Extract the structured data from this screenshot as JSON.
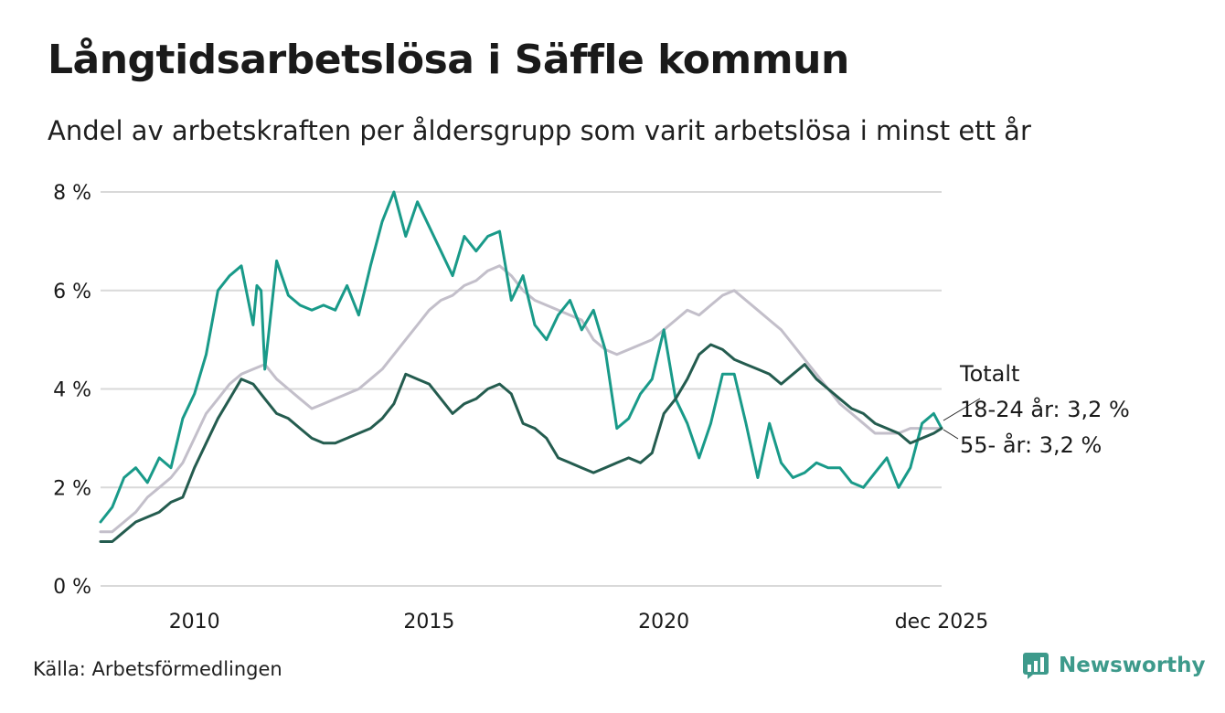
{
  "header": {
    "title": "Långtidsarbetslösa i Säffle kommun",
    "subtitle": "Andel av arbetskraften per åldersgrupp som varit arbetslösa i minst ett år"
  },
  "footer": {
    "source": "Källa: Arbetsförmedlingen",
    "brand": "Newsworthy"
  },
  "colors": {
    "totalt": "#c3bfca",
    "age_18_24": "#199a89",
    "age_55": "#245c4f",
    "grid": "#d9d9d9",
    "brand": "#3d9a8b"
  },
  "chart_data": {
    "type": "line",
    "title": "Långtidsarbetslösa i Säffle kommun",
    "xlabel": "",
    "ylabel": "",
    "ylim": [
      0,
      8
    ],
    "y_ticks": [
      0,
      2,
      4,
      6,
      8
    ],
    "y_tick_labels": [
      "0 %",
      "2 %",
      "4 %",
      "6 %",
      "8 %"
    ],
    "xlim": [
      2008.0,
      2025.917
    ],
    "x_ticks": [
      2010,
      2015,
      2020,
      2025.917
    ],
    "x_tick_labels": [
      "2010",
      "2015",
      "2020",
      "dec 2025"
    ],
    "grid": true,
    "end_labels": [
      "Totalt",
      "18-24 år: 3,2 %",
      "55- år: 3,2 %"
    ],
    "series": [
      {
        "name": "Totalt",
        "key": "totalt",
        "x": [
          2008.0,
          2008.25,
          2008.5,
          2008.75,
          2009.0,
          2009.25,
          2009.5,
          2009.75,
          2010.0,
          2010.25,
          2010.5,
          2010.75,
          2011.0,
          2011.25,
          2011.5,
          2011.75,
          2012.0,
          2012.25,
          2012.5,
          2012.75,
          2013.0,
          2013.25,
          2013.5,
          2013.75,
          2014.0,
          2014.25,
          2014.5,
          2014.75,
          2015.0,
          2015.25,
          2015.5,
          2015.75,
          2016.0,
          2016.25,
          2016.5,
          2016.75,
          2017.0,
          2017.25,
          2017.5,
          2017.75,
          2018.0,
          2018.25,
          2018.5,
          2018.75,
          2019.0,
          2019.25,
          2019.5,
          2019.75,
          2020.0,
          2020.25,
          2020.5,
          2020.75,
          2021.0,
          2021.25,
          2021.5,
          2021.75,
          2022.0,
          2022.25,
          2022.5,
          2022.75,
          2023.0,
          2023.25,
          2023.5,
          2023.75,
          2024.0,
          2024.25,
          2024.5,
          2024.75,
          2025.0,
          2025.25,
          2025.5,
          2025.75,
          2025.917
        ],
        "values": [
          1.1,
          1.1,
          1.3,
          1.5,
          1.8,
          2.0,
          2.2,
          2.5,
          3.0,
          3.5,
          3.8,
          4.1,
          4.3,
          4.4,
          4.5,
          4.2,
          4.0,
          3.8,
          3.6,
          3.7,
          3.8,
          3.9,
          4.0,
          4.2,
          4.4,
          4.7,
          5.0,
          5.3,
          5.6,
          5.8,
          5.9,
          6.1,
          6.2,
          6.4,
          6.5,
          6.3,
          6.0,
          5.8,
          5.7,
          5.6,
          5.5,
          5.4,
          5.0,
          4.8,
          4.7,
          4.8,
          4.9,
          5.0,
          5.2,
          5.4,
          5.6,
          5.5,
          5.7,
          5.9,
          6.0,
          5.8,
          5.6,
          5.4,
          5.2,
          4.9,
          4.6,
          4.3,
          4.0,
          3.7,
          3.5,
          3.3,
          3.1,
          3.1,
          3.1,
          3.2,
          3.2,
          3.2,
          3.2
        ]
      },
      {
        "name": "18-24 år",
        "key": "age_18_24",
        "x": [
          2008.0,
          2008.25,
          2008.5,
          2008.75,
          2009.0,
          2009.25,
          2009.5,
          2009.75,
          2010.0,
          2010.25,
          2010.5,
          2010.75,
          2011.0,
          2011.25,
          2011.33,
          2011.42,
          2011.5,
          2011.75,
          2012.0,
          2012.25,
          2012.5,
          2012.75,
          2013.0,
          2013.25,
          2013.5,
          2013.75,
          2014.0,
          2014.25,
          2014.5,
          2014.75,
          2015.0,
          2015.25,
          2015.5,
          2015.75,
          2016.0,
          2016.25,
          2016.5,
          2016.75,
          2017.0,
          2017.25,
          2017.5,
          2017.75,
          2018.0,
          2018.25,
          2018.5,
          2018.75,
          2019.0,
          2019.25,
          2019.5,
          2019.75,
          2020.0,
          2020.25,
          2020.5,
          2020.75,
          2021.0,
          2021.25,
          2021.5,
          2021.75,
          2022.0,
          2022.25,
          2022.5,
          2022.75,
          2023.0,
          2023.25,
          2023.5,
          2023.75,
          2024.0,
          2024.25,
          2024.5,
          2024.75,
          2025.0,
          2025.25,
          2025.5,
          2025.75,
          2025.917
        ],
        "values": [
          1.3,
          1.6,
          2.2,
          2.4,
          2.1,
          2.6,
          2.4,
          3.4,
          3.9,
          4.7,
          6.0,
          6.3,
          6.5,
          5.3,
          6.1,
          6.0,
          4.4,
          6.6,
          5.9,
          5.7,
          5.6,
          5.7,
          5.6,
          6.1,
          5.5,
          6.5,
          7.4,
          8.0,
          7.1,
          7.8,
          7.3,
          6.8,
          6.3,
          7.1,
          6.8,
          7.1,
          7.2,
          5.8,
          6.3,
          5.3,
          5.0,
          5.5,
          5.8,
          5.2,
          5.6,
          4.8,
          3.2,
          3.4,
          3.9,
          4.2,
          5.2,
          3.8,
          3.3,
          2.6,
          3.3,
          4.3,
          4.3,
          3.3,
          2.2,
          3.3,
          2.5,
          2.2,
          2.3,
          2.5,
          2.4,
          2.4,
          2.1,
          2.0,
          2.3,
          2.6,
          2.0,
          2.4,
          3.3,
          3.5,
          3.2
        ]
      },
      {
        "name": "55- år",
        "key": "age_55",
        "x": [
          2008.0,
          2008.25,
          2008.5,
          2008.75,
          2009.0,
          2009.25,
          2009.5,
          2009.75,
          2010.0,
          2010.25,
          2010.5,
          2010.75,
          2011.0,
          2011.25,
          2011.5,
          2011.75,
          2012.0,
          2012.25,
          2012.5,
          2012.75,
          2013.0,
          2013.25,
          2013.5,
          2013.75,
          2014.0,
          2014.25,
          2014.5,
          2014.75,
          2015.0,
          2015.25,
          2015.5,
          2015.75,
          2016.0,
          2016.25,
          2016.5,
          2016.75,
          2017.0,
          2017.25,
          2017.5,
          2017.75,
          2018.0,
          2018.25,
          2018.5,
          2018.75,
          2019.0,
          2019.25,
          2019.5,
          2019.75,
          2020.0,
          2020.25,
          2020.5,
          2020.75,
          2021.0,
          2021.25,
          2021.5,
          2021.75,
          2022.0,
          2022.25,
          2022.5,
          2022.75,
          2023.0,
          2023.25,
          2023.5,
          2023.75,
          2024.0,
          2024.25,
          2024.5,
          2024.75,
          2025.0,
          2025.25,
          2025.5,
          2025.75,
          2025.917
        ],
        "values": [
          0.9,
          0.9,
          1.1,
          1.3,
          1.4,
          1.5,
          1.7,
          1.8,
          2.4,
          2.9,
          3.4,
          3.8,
          4.2,
          4.1,
          3.8,
          3.5,
          3.4,
          3.2,
          3.0,
          2.9,
          2.9,
          3.0,
          3.1,
          3.2,
          3.4,
          3.7,
          4.3,
          4.2,
          4.1,
          3.8,
          3.5,
          3.7,
          3.8,
          4.0,
          4.1,
          3.9,
          3.3,
          3.2,
          3.0,
          2.6,
          2.5,
          2.4,
          2.3,
          2.4,
          2.5,
          2.6,
          2.5,
          2.7,
          3.5,
          3.8,
          4.2,
          4.7,
          4.9,
          4.8,
          4.6,
          4.5,
          4.4,
          4.3,
          4.1,
          4.3,
          4.5,
          4.2,
          4.0,
          3.8,
          3.6,
          3.5,
          3.3,
          3.2,
          3.1,
          2.9,
          3.0,
          3.1,
          3.2
        ]
      }
    ]
  }
}
